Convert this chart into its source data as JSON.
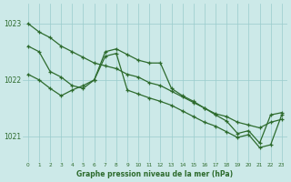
{
  "xlabel": "Graphe pression niveau de la mer (hPa)",
  "hours": [
    0,
    1,
    2,
    3,
    4,
    5,
    6,
    7,
    8,
    9,
    10,
    11,
    12,
    13,
    14,
    15,
    16,
    17,
    18,
    19,
    20,
    21,
    22,
    23
  ],
  "line1": [
    1023.0,
    1022.85,
    1022.75,
    1022.6,
    1022.5,
    1022.4,
    1022.3,
    1022.25,
    1022.2,
    1022.1,
    1022.05,
    1021.95,
    1021.9,
    1021.8,
    1021.7,
    1021.6,
    1021.5,
    1021.4,
    1021.35,
    1021.25,
    1021.2,
    1021.15,
    1021.25,
    1021.3
  ],
  "line2": [
    1022.6,
    1022.5,
    1022.15,
    1022.05,
    1021.9,
    1021.85,
    1022.0,
    1022.5,
    1022.55,
    1022.45,
    1022.35,
    1022.3,
    1022.3,
    1021.85,
    1021.72,
    1021.62,
    1021.5,
    1021.38,
    1021.27,
    1021.05,
    1021.1,
    1020.88,
    1021.38,
    1021.42
  ],
  "line3": [
    1022.1,
    1022.0,
    1021.85,
    1021.72,
    1021.82,
    1021.9,
    1022.0,
    1022.42,
    1022.47,
    1021.82,
    1021.75,
    1021.68,
    1021.62,
    1021.55,
    1021.45,
    1021.35,
    1021.25,
    1021.18,
    1021.08,
    1020.98,
    1021.03,
    1020.8,
    1020.85,
    1021.38
  ],
  "background_color": "#cce9e8",
  "grid_color": "#99cccc",
  "line_color": "#2d6b2d",
  "ylim_min": 1020.55,
  "ylim_max": 1023.35,
  "yticks": [
    1021,
    1022,
    1023
  ]
}
